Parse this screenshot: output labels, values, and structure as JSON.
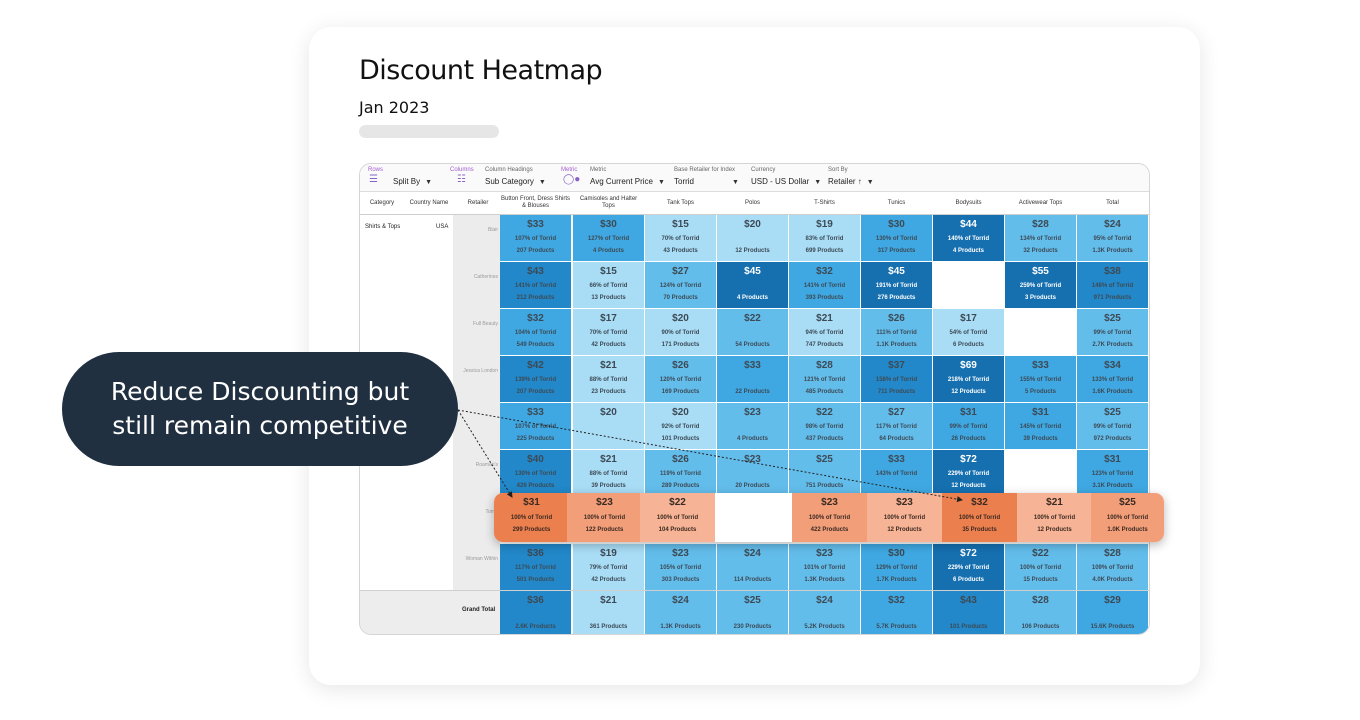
{
  "title": "Discount Heatmap",
  "subtitle": "Jan 2023",
  "toolbar": {
    "rows_label": "Rows",
    "rows_value": "Split By",
    "columns_label": "Columns",
    "column_headings_label": "Column Headings",
    "column_headings_value": "Sub Category",
    "metric_tag": "Metric",
    "metric_label": "Metric",
    "metric_value": "Avg Current Price",
    "base_label": "Base Retailer for Index",
    "base_value": "Torrid",
    "currency_label": "Currency",
    "currency_value": "USD - US Dollar",
    "sort_label": "Sort By",
    "sort_value": "Retailer ↑"
  },
  "headers": {
    "category": "Category",
    "country": "Country Name",
    "retailer": "Retailer",
    "columns": [
      "Button Front, Dress Shirts & Blouses",
      "Camisoles and Halter Tops",
      "Tank Tops",
      "Polos",
      "T-Shirts",
      "Tunics",
      "Bodysuits",
      "Activewear Tops",
      "Total"
    ]
  },
  "row_category": "Shirts & Tops",
  "row_country": "USA",
  "retailers": [
    "Blair",
    "Catherines",
    "Full Beauty",
    "Jessica London",
    "",
    "Roaman's",
    "Torrid",
    "Woman Within"
  ],
  "rows": [
    [
      [
        "$33",
        "107% of Torrid",
        "207 Products"
      ],
      [
        "$30",
        "127% of Torrid",
        "4 Products"
      ],
      [
        "$15",
        "70% of Torrid",
        "43 Products"
      ],
      [
        "$20",
        "",
        "12 Products"
      ],
      [
        "$19",
        "83% of Torrid",
        "699 Products"
      ],
      [
        "$30",
        "130% of Torrid",
        "317 Products"
      ],
      [
        "$44",
        "140% of Torrid",
        "4 Products"
      ],
      [
        "$28",
        "134% of Torrid",
        "32 Products"
      ],
      [
        "$24",
        "95% of Torrid",
        "1.3K Products"
      ]
    ],
    [
      [
        "$43",
        "141% of Torrid",
        "212 Products"
      ],
      [
        "$15",
        "66% of Torrid",
        "13 Products"
      ],
      [
        "$27",
        "124% of Torrid",
        "70 Products"
      ],
      [
        "$45",
        "",
        "4 Products"
      ],
      [
        "$32",
        "141% of Torrid",
        "393 Products"
      ],
      [
        "$45",
        "191% of Torrid",
        "276 Products"
      ],
      null,
      [
        "$55",
        "259% of Torrid",
        "3 Products"
      ],
      [
        "$38",
        "148% of Torrid",
        "971 Products"
      ]
    ],
    [
      [
        "$32",
        "104% of Torrid",
        "549 Products"
      ],
      [
        "$17",
        "70% of Torrid",
        "42 Products"
      ],
      [
        "$20",
        "90% of Torrid",
        "171 Products"
      ],
      [
        "$22",
        "",
        "54 Products"
      ],
      [
        "$21",
        "94% of Torrid",
        "747 Products"
      ],
      [
        "$26",
        "111% of Torrid",
        "1.1K Products"
      ],
      [
        "$17",
        "54% of Torrid",
        "6 Products"
      ],
      null,
      [
        "$25",
        "99% of Torrid",
        "2.7K Products"
      ]
    ],
    [
      [
        "$42",
        "139% of Torrid",
        "207 Products"
      ],
      [
        "$21",
        "88% of Torrid",
        "23 Products"
      ],
      [
        "$26",
        "120% of Torrid",
        "169 Products"
      ],
      [
        "$33",
        "",
        "22 Products"
      ],
      [
        "$28",
        "121% of Torrid",
        "485 Products"
      ],
      [
        "$37",
        "158% of Torrid",
        "711 Products"
      ],
      [
        "$69",
        "218% of Torrid",
        "12 Products"
      ],
      [
        "$33",
        "155% of Torrid",
        "5 Products"
      ],
      [
        "$34",
        "133% of Torrid",
        "1.6K Products"
      ]
    ],
    [
      [
        "$33",
        "107% of Torrid",
        "225 Products"
      ],
      [
        "$20",
        "",
        ""
      ],
      [
        "$20",
        "92% of Torrid",
        "101 Products"
      ],
      [
        "$23",
        "",
        "4 Products"
      ],
      [
        "$22",
        "98% of Torrid",
        "437 Products"
      ],
      [
        "$27",
        "117% of Torrid",
        "64 Products"
      ],
      [
        "$31",
        "99% of Torrid",
        "26 Products"
      ],
      [
        "$31",
        "145% of Torrid",
        "39 Products"
      ],
      [
        "$25",
        "99% of Torrid",
        "972 Products"
      ]
    ],
    [
      [
        "$40",
        "130% of Torrid",
        "426 Products"
      ],
      [
        "$21",
        "88% of Torrid",
        "39 Products"
      ],
      [
        "$26",
        "119% of Torrid",
        "289 Products"
      ],
      [
        "$23",
        "",
        "20 Products"
      ],
      [
        "$25",
        "",
        "751 Products"
      ],
      [
        "$33",
        "143% of Torrid",
        ""
      ],
      [
        "$72",
        "229% of Torrid",
        "12 Products"
      ],
      null,
      [
        "$31",
        "123% of Torrid",
        "3.1K Products"
      ]
    ],
    [
      null,
      null,
      null,
      null,
      null,
      null,
      null,
      null,
      null
    ],
    [
      [
        "$36",
        "117% of Torrid",
        "501 Products"
      ],
      [
        "$19",
        "79% of Torrid",
        "42 Products"
      ],
      [
        "$23",
        "105% of Torrid",
        "303 Products"
      ],
      [
        "$24",
        "",
        "114 Products"
      ],
      [
        "$23",
        "101% of Torrid",
        "1.3K Products"
      ],
      [
        "$30",
        "129% of Torrid",
        "1.7K Products"
      ],
      [
        "$72",
        "229% of Torrid",
        "6 Products"
      ],
      [
        "$22",
        "100% of Torrid",
        "15 Products"
      ],
      [
        "$28",
        "109% of Torrid",
        "4.0K Products"
      ]
    ]
  ],
  "grand_total_label": "Grand Total",
  "grand_total": [
    [
      "$36",
      "2.6K Products"
    ],
    [
      "$21",
      "361 Products"
    ],
    [
      "$24",
      "1.3K Products"
    ],
    [
      "$25",
      "230 Products"
    ],
    [
      "$24",
      "5.2K Products"
    ],
    [
      "$32",
      "5.7K Products"
    ],
    [
      "$43",
      "101 Products"
    ],
    [
      "$28",
      "106 Products"
    ],
    [
      "$29",
      "15.6K Products"
    ]
  ],
  "highlight_row": [
    [
      "$31",
      "100% of Torrid",
      "299 Products"
    ],
    [
      "$23",
      "100% of Torrid",
      "122 Products"
    ],
    [
      "$22",
      "100% of Torrid",
      "104 Products"
    ],
    null,
    [
      "$23",
      "100% of Torrid",
      "422 Products"
    ],
    [
      "$23",
      "100% of Torrid",
      "12 Products"
    ],
    [
      "$32",
      "100% of Torrid",
      "35 Products"
    ],
    [
      "$21",
      "100% of Torrid",
      "12 Products"
    ],
    [
      "$25",
      "100% of Torrid",
      "1.0K Products"
    ]
  ],
  "callout": {
    "line1": "Reduce Discounting but",
    "line2": "still remain competitive"
  },
  "colors": {
    "blue_light": "#a9ddf6",
    "blue_mid": "#63bdeb",
    "blue_mid2": "#3fa8e2",
    "blue_dark": "#2288c9",
    "blue_darkest": "#1670b0",
    "orange_light": "#f6b395",
    "orange_mid": "#f19e79",
    "orange_dark": "#ec7f4e",
    "callout_bg": "#213040"
  }
}
